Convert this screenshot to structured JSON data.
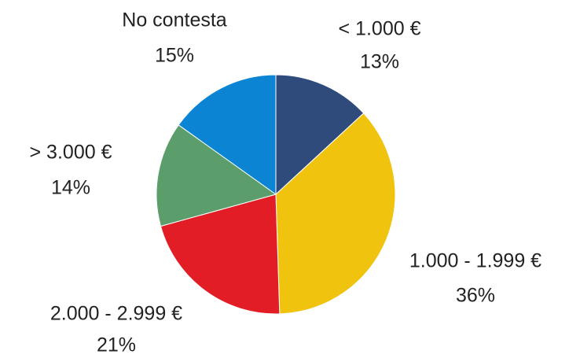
{
  "chart_data": {
    "type": "pie",
    "categories": [
      "< 1.000 €",
      "1.000 - 1.999 €",
      "2.000 - 2.999 €",
      "> 3.000 €",
      "No contesta"
    ],
    "values": [
      13,
      36,
      21,
      14,
      15
    ],
    "value_labels": [
      "13%",
      "36%",
      "21%",
      "14%",
      "15%"
    ],
    "colors": [
      "#2f4b7c",
      "#f0c30f",
      "#e31d25",
      "#5b9e6b",
      "#0b85d3"
    ]
  }
}
